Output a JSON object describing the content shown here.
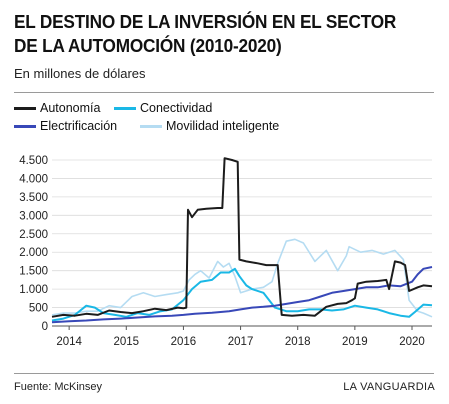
{
  "header": {
    "title_line1": "EL DESTINO DE LA INVERSIÓN EN EL SECTOR",
    "title_line2": "DE LA AUTOMOCIÓN (2010-2020)",
    "subtitle": "En millones de dólares"
  },
  "footer": {
    "source": "Fuente: McKinsey",
    "brand": "LA VANGUARDIA"
  },
  "chart_data": {
    "type": "line",
    "title": "EL DESTINO DE LA INVERSIÓN EN EL SECTOR DE LA AUTOMOCIÓN (2010-2020)",
    "subtitle": "En millones de dólares",
    "xlabel": "",
    "ylabel": "",
    "xlim": [
      2013.7,
      2020.35
    ],
    "ylim": [
      0,
      4500
    ],
    "yticks": [
      0,
      500,
      1000,
      1500,
      2000,
      2500,
      3000,
      3500,
      4000,
      4500
    ],
    "ytick_labels": [
      "0",
      "500",
      "1.000",
      "1.500",
      "2.000",
      "2.500",
      "3.000",
      "3.500",
      "4.000",
      "4.500"
    ],
    "xticks": [
      2014,
      2015,
      2016,
      2017,
      2018,
      2019,
      2020
    ],
    "xtick_labels": [
      "2014",
      "2015",
      "2016",
      "2017",
      "2018",
      "2019",
      "2020"
    ],
    "grid": "horizontal",
    "legend_position": "top-left",
    "series": [
      {
        "name": "Autonomía",
        "color": "#1c1c1c",
        "points": [
          [
            2013.7,
            250
          ],
          [
            2013.9,
            300
          ],
          [
            2014.1,
            280
          ],
          [
            2014.3,
            330
          ],
          [
            2014.5,
            300
          ],
          [
            2014.7,
            420
          ],
          [
            2014.9,
            380
          ],
          [
            2015.1,
            350
          ],
          [
            2015.3,
            400
          ],
          [
            2015.5,
            470
          ],
          [
            2015.7,
            430
          ],
          [
            2015.9,
            500
          ],
          [
            2016.0,
            480
          ],
          [
            2016.05,
            500
          ],
          [
            2016.08,
            3150
          ],
          [
            2016.15,
            2950
          ],
          [
            2016.25,
            3150
          ],
          [
            2016.4,
            3180
          ],
          [
            2016.6,
            3200
          ],
          [
            2016.68,
            3200
          ],
          [
            2016.72,
            4550
          ],
          [
            2016.85,
            4500
          ],
          [
            2016.95,
            4450
          ],
          [
            2016.98,
            1800
          ],
          [
            2017.1,
            1750
          ],
          [
            2017.3,
            1700
          ],
          [
            2017.45,
            1650
          ],
          [
            2017.65,
            1650
          ],
          [
            2017.72,
            300
          ],
          [
            2017.9,
            280
          ],
          [
            2018.1,
            300
          ],
          [
            2018.3,
            280
          ],
          [
            2018.5,
            520
          ],
          [
            2018.7,
            600
          ],
          [
            2018.85,
            620
          ],
          [
            2018.95,
            700
          ],
          [
            2019.0,
            750
          ],
          [
            2019.05,
            1150
          ],
          [
            2019.2,
            1200
          ],
          [
            2019.4,
            1220
          ],
          [
            2019.55,
            1250
          ],
          [
            2019.6,
            1000
          ],
          [
            2019.7,
            1750
          ],
          [
            2019.8,
            1720
          ],
          [
            2019.88,
            1650
          ],
          [
            2019.95,
            950
          ],
          [
            2020.1,
            1050
          ],
          [
            2020.2,
            1100
          ],
          [
            2020.35,
            1080
          ]
        ]
      },
      {
        "name": "Conectividad",
        "color": "#1ab8e6",
        "points": [
          [
            2013.7,
            150
          ],
          [
            2013.9,
            200
          ],
          [
            2014.1,
            300
          ],
          [
            2014.3,
            550
          ],
          [
            2014.45,
            500
          ],
          [
            2014.6,
            350
          ],
          [
            2014.8,
            300
          ],
          [
            2015.0,
            250
          ],
          [
            2015.2,
            350
          ],
          [
            2015.4,
            300
          ],
          [
            2015.6,
            400
          ],
          [
            2015.8,
            450
          ],
          [
            2016.0,
            700
          ],
          [
            2016.15,
            1000
          ],
          [
            2016.3,
            1200
          ],
          [
            2016.5,
            1250
          ],
          [
            2016.65,
            1450
          ],
          [
            2016.8,
            1450
          ],
          [
            2016.9,
            1550
          ],
          [
            2016.98,
            1350
          ],
          [
            2017.1,
            1100
          ],
          [
            2017.2,
            1000
          ],
          [
            2017.4,
            900
          ],
          [
            2017.6,
            500
          ],
          [
            2017.8,
            400
          ],
          [
            2018.0,
            400
          ],
          [
            2018.2,
            450
          ],
          [
            2018.4,
            450
          ],
          [
            2018.6,
            420
          ],
          [
            2018.8,
            450
          ],
          [
            2019.0,
            550
          ],
          [
            2019.2,
            500
          ],
          [
            2019.4,
            450
          ],
          [
            2019.6,
            350
          ],
          [
            2019.8,
            280
          ],
          [
            2019.95,
            250
          ],
          [
            2020.05,
            380
          ],
          [
            2020.2,
            580
          ],
          [
            2020.35,
            560
          ]
        ]
      },
      {
        "name": "Electrificación",
        "color": "#3848b8",
        "points": [
          [
            2013.7,
            100
          ],
          [
            2014.0,
            130
          ],
          [
            2014.3,
            150
          ],
          [
            2014.6,
            180
          ],
          [
            2014.9,
            200
          ],
          [
            2015.2,
            230
          ],
          [
            2015.5,
            260
          ],
          [
            2015.8,
            280
          ],
          [
            2016.0,
            300
          ],
          [
            2016.2,
            330
          ],
          [
            2016.5,
            360
          ],
          [
            2016.8,
            400
          ],
          [
            2017.0,
            450
          ],
          [
            2017.2,
            500
          ],
          [
            2017.4,
            520
          ],
          [
            2017.6,
            550
          ],
          [
            2017.8,
            600
          ],
          [
            2018.0,
            650
          ],
          [
            2018.2,
            700
          ],
          [
            2018.4,
            800
          ],
          [
            2018.6,
            900
          ],
          [
            2018.8,
            950
          ],
          [
            2019.0,
            1000
          ],
          [
            2019.2,
            1050
          ],
          [
            2019.4,
            1050
          ],
          [
            2019.6,
            1100
          ],
          [
            2019.8,
            1080
          ],
          [
            2020.0,
            1200
          ],
          [
            2020.1,
            1400
          ],
          [
            2020.2,
            1550
          ],
          [
            2020.35,
            1600
          ]
        ]
      },
      {
        "name": "Movilidad inteligente",
        "color": "#b5dcf2",
        "points": [
          [
            2013.7,
            300
          ],
          [
            2013.9,
            350
          ],
          [
            2014.1,
            350
          ],
          [
            2014.3,
            400
          ],
          [
            2014.5,
            400
          ],
          [
            2014.7,
            550
          ],
          [
            2014.9,
            500
          ],
          [
            2015.1,
            800
          ],
          [
            2015.3,
            900
          ],
          [
            2015.5,
            800
          ],
          [
            2015.7,
            850
          ],
          [
            2015.9,
            900
          ],
          [
            2016.0,
            950
          ],
          [
            2016.1,
            1250
          ],
          [
            2016.2,
            1400
          ],
          [
            2016.3,
            1500
          ],
          [
            2016.45,
            1300
          ],
          [
            2016.6,
            1750
          ],
          [
            2016.7,
            1600
          ],
          [
            2016.8,
            1700
          ],
          [
            2016.9,
            1350
          ],
          [
            2017.0,
            900
          ],
          [
            2017.2,
            1000
          ],
          [
            2017.4,
            1050
          ],
          [
            2017.55,
            1200
          ],
          [
            2017.65,
            1700
          ],
          [
            2017.8,
            2300
          ],
          [
            2017.95,
            2350
          ],
          [
            2018.1,
            2250
          ],
          [
            2018.3,
            1750
          ],
          [
            2018.5,
            2050
          ],
          [
            2018.7,
            1500
          ],
          [
            2018.85,
            1900
          ],
          [
            2018.9,
            2150
          ],
          [
            2019.1,
            2000
          ],
          [
            2019.3,
            2050
          ],
          [
            2019.5,
            1950
          ],
          [
            2019.7,
            2050
          ],
          [
            2019.85,
            1800
          ],
          [
            2019.95,
            700
          ],
          [
            2020.1,
            400
          ],
          [
            2020.2,
            350
          ],
          [
            2020.35,
            250
          ]
        ]
      }
    ]
  }
}
